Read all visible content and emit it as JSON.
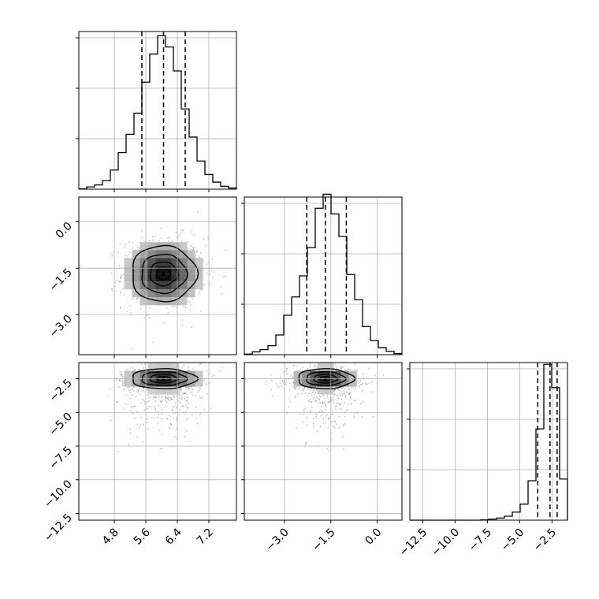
{
  "chart_data": {
    "type": "corner",
    "parameters": 3,
    "grid": true,
    "panels": [
      {
        "id": "hist-1",
        "kind": "histogram",
        "row": 0,
        "col": 0,
        "xlim": [
          3.9,
          7.9
        ],
        "bin_edges": [
          3.9,
          4.1,
          4.3,
          4.5,
          4.7,
          4.9,
          5.1,
          5.3,
          5.5,
          5.7,
          5.9,
          6.1,
          6.3,
          6.5,
          6.7,
          6.9,
          7.1,
          7.3,
          7.5,
          7.7,
          7.9
        ],
        "counts": [
          1,
          8,
          15,
          30,
          68,
          130,
          195,
          270,
          380,
          480,
          545,
          505,
          420,
          285,
          185,
          100,
          52,
          25,
          10,
          4
        ],
        "ymax": 560,
        "quantiles": [
          5.5,
          6.05,
          6.6
        ]
      },
      {
        "id": "hist-2",
        "kind": "histogram",
        "row": 1,
        "col": 1,
        "xlim": [
          -4.3,
          0.8
        ],
        "bin_edges": [
          -4.3,
          -4.045,
          -3.79,
          -3.535,
          -3.28,
          -3.025,
          -2.77,
          -2.515,
          -2.26,
          -2.005,
          -1.75,
          -1.495,
          -1.24,
          -0.985,
          -0.73,
          -0.475,
          -0.22,
          0.035,
          0.29,
          0.545,
          0.8
        ],
        "counts": [
          2,
          10,
          18,
          32,
          70,
          140,
          205,
          280,
          380,
          520,
          570,
          500,
          420,
          285,
          195,
          100,
          50,
          25,
          12,
          4
        ],
        "ymax": 560,
        "quantiles": [
          -2.28,
          -1.68,
          -1.0
        ]
      },
      {
        "id": "hist-3",
        "kind": "histogram",
        "row": 2,
        "col": 2,
        "xlim": [
          -13.5,
          -1.3
        ],
        "bin_edges": [
          -13.5,
          -12.89,
          -12.28,
          -11.67,
          -11.06,
          -10.45,
          -9.84,
          -9.23,
          -8.62,
          -8.01,
          -7.4,
          -6.79,
          -6.18,
          -5.57,
          -4.96,
          -4.35,
          -3.74,
          -3.13,
          -2.52,
          -1.91,
          -1.3
        ],
        "counts": [
          0,
          0,
          0,
          0,
          0,
          0,
          0,
          0,
          0,
          2,
          6,
          12,
          22,
          45,
          90,
          220,
          510,
          870,
          740,
          230
        ],
        "ymax": 880,
        "quantiles": [
          -3.6,
          -2.65,
          -2.1
        ]
      },
      {
        "id": "density-21",
        "kind": "density",
        "row": 1,
        "col": 0,
        "xlim": [
          3.9,
          7.9
        ],
        "ylim": [
          -4.3,
          0.8
        ],
        "center": [
          6.05,
          -1.68
        ],
        "sigma": [
          0.5,
          0.55
        ],
        "contour_scales": [
          0.35,
          0.7,
          1.15,
          1.65
        ]
      },
      {
        "id": "density-31",
        "kind": "density",
        "row": 2,
        "col": 0,
        "xlim": [
          3.9,
          7.9
        ],
        "ylim": [
          -13.0,
          -1.3
        ],
        "center": [
          6.05,
          -2.5
        ],
        "sigma": [
          0.5,
          0.45
        ],
        "contour_scales": [
          0.35,
          0.7,
          1.15,
          1.65
        ]
      },
      {
        "id": "density-32",
        "kind": "density",
        "row": 2,
        "col": 1,
        "xlim": [
          -4.3,
          0.8
        ],
        "ylim": [
          -13.0,
          -1.3
        ],
        "center": [
          -1.68,
          -2.5
        ],
        "sigma": [
          0.55,
          0.45
        ],
        "contour_scales": [
          0.35,
          0.7,
          1.15,
          1.65
        ]
      }
    ],
    "tick_labels": {
      "col0_x": [
        "4.8",
        "5.6",
        "6.4",
        "7.2"
      ],
      "col0_x_values": [
        4.8,
        5.6,
        6.4,
        7.2
      ],
      "col1_x": [
        "−3.0",
        "−1.5",
        "0.0"
      ],
      "col1_x_values": [
        -3.0,
        -1.5,
        0.0
      ],
      "col2_x": [
        "−12.5",
        "−10.0",
        "−7.5",
        "−5.0",
        "−2.5"
      ],
      "col2_x_values": [
        -12.5,
        -10.0,
        -7.5,
        -5.0,
        -2.5
      ],
      "row1_y": [
        "0.0",
        "−1.5",
        "−3.0"
      ],
      "row1_y_values": [
        0.0,
        -1.5,
        -3.0
      ],
      "row2_y": [
        "−2.5",
        "−5.0",
        "−7.5",
        "−10.0",
        "−12.5"
      ],
      "row2_y_values": [
        -2.5,
        -5.0,
        -7.5,
        -10.0,
        -12.5
      ]
    }
  }
}
